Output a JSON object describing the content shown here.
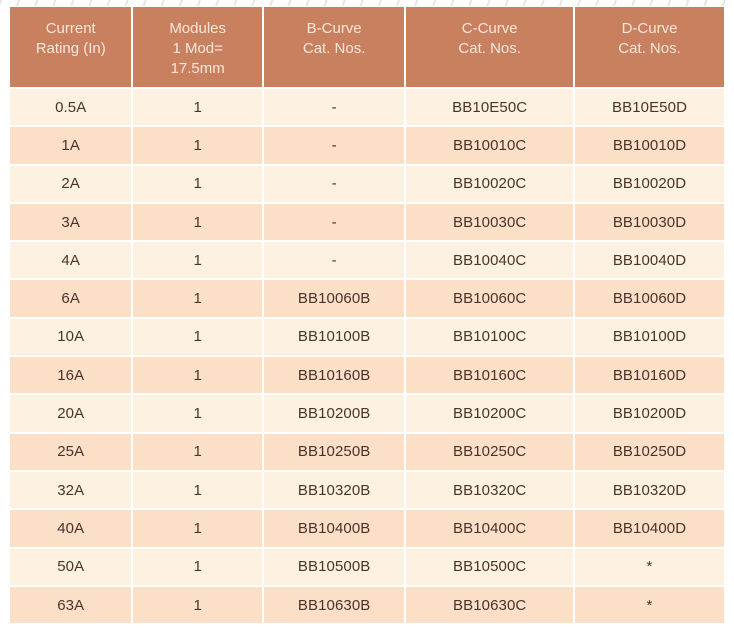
{
  "table": {
    "columns": [
      "Current\nRating (In)",
      "Modules\n1 Mod=\n17.5mm",
      "B-Curve\nCat. Nos.",
      "C-Curve\nCat. Nos.",
      "D-Curve\nCat. Nos."
    ],
    "column_keys": [
      "current-rating",
      "modules",
      "b-curve-cat-no",
      "c-curve-cat-no",
      "d-curve-cat-no"
    ],
    "rows": [
      [
        "0.5A",
        "1",
        "-",
        "BB10E50C",
        "BB10E50D"
      ],
      [
        "1A",
        "1",
        "-",
        "BB10010C",
        "BB10010D"
      ],
      [
        "2A",
        "1",
        "-",
        "BB10020C",
        "BB10020D"
      ],
      [
        "3A",
        "1",
        "-",
        "BB10030C",
        "BB10030D"
      ],
      [
        "4A",
        "1",
        "-",
        "BB10040C",
        "BB10040D"
      ],
      [
        "6A",
        "1",
        "BB10060B",
        "BB10060C",
        "BB10060D"
      ],
      [
        "10A",
        "1",
        "BB10100B",
        "BB10100C",
        "BB10100D"
      ],
      [
        "16A",
        "1",
        "BB10160B",
        "BB10160C",
        "BB10160D"
      ],
      [
        "20A",
        "1",
        "BB10200B",
        "BB10200C",
        "BB10200D"
      ],
      [
        "25A",
        "1",
        "BB10250B",
        "BB10250C",
        "BB10250D"
      ],
      [
        "32A",
        "1",
        "BB10320B",
        "BB10320C",
        "BB10320D"
      ],
      [
        "40A",
        "1",
        "BB10400B",
        "BB10400C",
        "BB10400D"
      ],
      [
        "50A",
        "1",
        "BB10500B",
        "BB10500C",
        "*"
      ],
      [
        "63A",
        "1",
        "BB10630B",
        "BB10630C",
        "*"
      ]
    ]
  },
  "colors": {
    "header_bg": "#c8805f",
    "header_text": "#f8e7dc",
    "row_light": "#fdf1e2",
    "row_dark": "#fbdfc7",
    "body_text": "#4b332d",
    "page_bg": "#ffffff"
  }
}
